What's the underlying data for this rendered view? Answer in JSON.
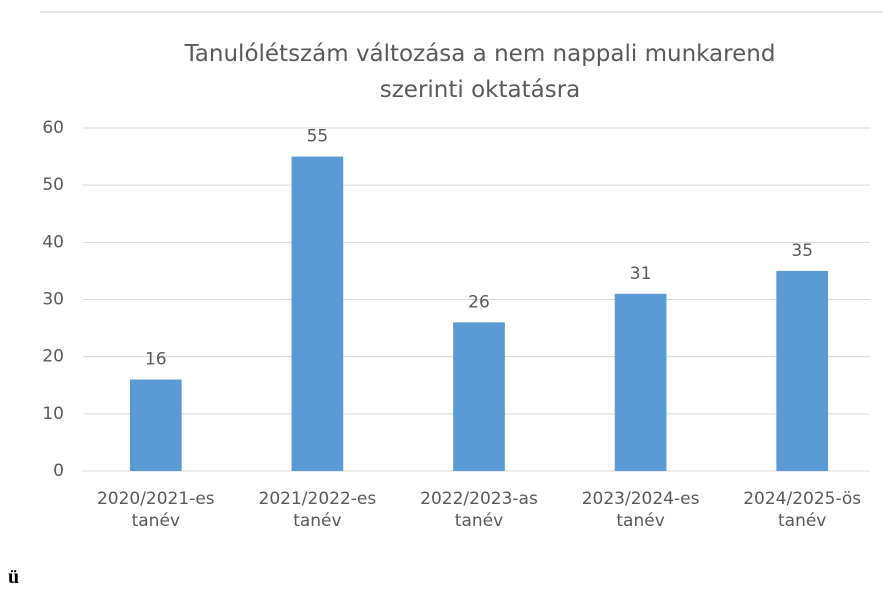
{
  "chart_data": {
    "type": "bar",
    "title": "Tanulólétszám változása a nem nappali munkarend szerinti oktatásra",
    "categories": [
      "2020/2021-es tanév",
      "2021/2022-es tanév",
      "2022/2023-as tanév",
      "2023/2024-es tanév",
      "2024/2025-ös tanév"
    ],
    "values": [
      16,
      55,
      26,
      31,
      35
    ],
    "color": "#5b9bd5",
    "ylim": [
      0,
      60
    ],
    "yticks": [
      0,
      10,
      20,
      30,
      40,
      50,
      60
    ],
    "grid": true
  },
  "footnote": "ü"
}
